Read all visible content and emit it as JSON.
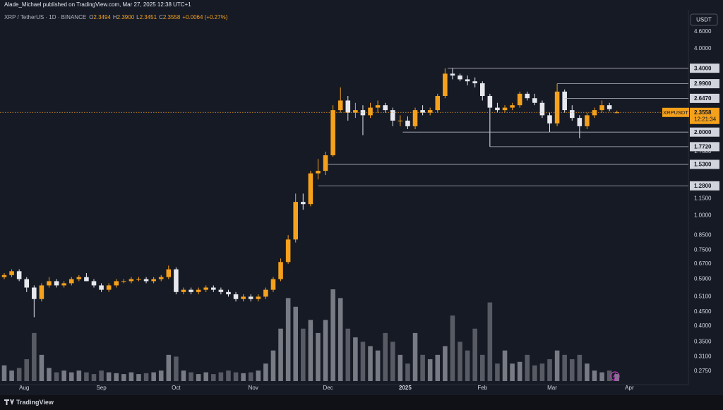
{
  "page": {
    "published": "Alade_Michael published on TradingView.com, Mar 27, 2025 12:38 UTC+1",
    "currency": "USDT",
    "brand": "TradingView"
  },
  "chart_data": {
    "type": "candlestick",
    "symbol": "XRP / TetherUS · 1D · BINANCE",
    "legend_ohlc": [
      {
        "key": "O",
        "value": "2.3494"
      },
      {
        "key": "H",
        "value": "2.3900"
      },
      {
        "key": "L",
        "value": "2.3451"
      },
      {
        "key": "C",
        "value": "2.3558"
      }
    ],
    "change": "+0.0064 (+0.27%)",
    "log_scale": true,
    "grid": false,
    "up_color": "#f5a11c",
    "down_color": "#e6e8ee",
    "volume_color": "#9a9ca4",
    "xlim": [
      -1.7,
      274.7
    ],
    "xticks": [
      {
        "value": 8,
        "label": "Aug"
      },
      {
        "value": 39,
        "label": "Sep"
      },
      {
        "value": 69,
        "label": "Oct"
      },
      {
        "value": 100,
        "label": "Nov"
      },
      {
        "value": 130,
        "label": "Dec"
      },
      {
        "value": 161,
        "label": "2025"
      },
      {
        "value": 192,
        "label": "Feb"
      },
      {
        "value": 220,
        "label": "Mar"
      },
      {
        "value": 251,
        "label": "Apr"
      }
    ],
    "ylim": [
      0.253,
      4.88
    ],
    "yticks": [
      {
        "value": 4.6,
        "label": "4.6000"
      },
      {
        "value": 4.0,
        "label": "4.0000"
      },
      {
        "value": 1.7,
        "label": "1.7000"
      },
      {
        "value": 1.15,
        "label": "1.1500"
      },
      {
        "value": 1.0,
        "label": "1.0000"
      },
      {
        "value": 0.85,
        "label": "0.8500"
      },
      {
        "value": 0.75,
        "label": "0.7500"
      },
      {
        "value": 0.67,
        "label": "0.6700"
      },
      {
        "value": 0.59,
        "label": "0.5900"
      },
      {
        "value": 0.51,
        "label": "0.5100"
      },
      {
        "value": 0.45,
        "label": "0.4500"
      },
      {
        "value": 0.4,
        "label": "0.4000"
      },
      {
        "value": 0.35,
        "label": "0.3500"
      },
      {
        "value": 0.31,
        "label": "0.3100"
      },
      {
        "value": 0.275,
        "label": "0.2750"
      }
    ],
    "levels": [
      {
        "value": 3.4,
        "label": "3.4000"
      },
      {
        "value": 2.99,
        "label": "2.9900"
      },
      {
        "value": 2.647,
        "label": "2.6470"
      },
      {
        "value": 2.0,
        "label": "2.0000"
      },
      {
        "value": 1.772,
        "label": "1.7720"
      },
      {
        "value": 1.53,
        "label": "1.5300"
      },
      {
        "value": 1.28,
        "label": "1.2800"
      }
    ],
    "last_price": {
      "value": 2.3558,
      "label": "2.3558",
      "symbol": "XRPUSDT",
      "countdown": "12:21:34"
    },
    "x": [
      0,
      3,
      6,
      9,
      12,
      15,
      18,
      21,
      24,
      27,
      30,
      33,
      36,
      39,
      42,
      45,
      48,
      51,
      54,
      57,
      60,
      63,
      66,
      69,
      72,
      75,
      78,
      81,
      84,
      87,
      90,
      93,
      96,
      99,
      102,
      105,
      108,
      111,
      114,
      117,
      120,
      123,
      126,
      129,
      132,
      135,
      138,
      141,
      144,
      147,
      150,
      153,
      156,
      159,
      162,
      165,
      168,
      171,
      174,
      177,
      180,
      183,
      186,
      189,
      192,
      195,
      198,
      201,
      204,
      207,
      210,
      213,
      216,
      219,
      222,
      225,
      228,
      231,
      234,
      237,
      240,
      243,
      246
    ],
    "open": [
      0.6,
      0.61,
      0.63,
      0.59,
      0.55,
      0.5,
      0.56,
      0.58,
      0.56,
      0.57,
      0.59,
      0.6,
      0.58,
      0.56,
      0.54,
      0.56,
      0.58,
      0.58,
      0.59,
      0.59,
      0.58,
      0.59,
      0.6,
      0.64,
      0.53,
      0.54,
      0.53,
      0.54,
      0.55,
      0.54,
      0.53,
      0.52,
      0.5,
      0.51,
      0.5,
      0.51,
      0.54,
      0.59,
      0.68,
      0.82,
      1.12,
      1.1,
      1.42,
      1.45,
      1.65,
      2.4,
      2.6,
      2.35,
      2.4,
      2.3,
      2.45,
      2.5,
      2.4,
      2.2,
      2.2,
      2.1,
      2.4,
      2.35,
      2.4,
      2.7,
      3.25,
      3.2,
      3.1,
      3.05,
      3.0,
      2.7,
      2.45,
      2.4,
      2.45,
      2.5,
      2.75,
      2.65,
      2.55,
      2.3,
      2.15,
      2.8,
      2.4,
      2.25,
      2.1,
      2.3,
      2.4,
      2.5,
      2.3494
    ],
    "high": [
      0.62,
      0.64,
      0.64,
      0.6,
      0.56,
      0.57,
      0.6,
      0.59,
      0.58,
      0.6,
      0.61,
      0.62,
      0.59,
      0.57,
      0.57,
      0.59,
      0.59,
      0.6,
      0.6,
      0.6,
      0.6,
      0.61,
      0.66,
      0.65,
      0.55,
      0.55,
      0.55,
      0.56,
      0.56,
      0.55,
      0.54,
      0.53,
      0.52,
      0.52,
      0.52,
      0.55,
      0.6,
      0.7,
      0.85,
      1.2,
      1.2,
      1.45,
      1.6,
      1.7,
      2.5,
      2.9,
      2.7,
      2.55,
      2.5,
      2.55,
      2.6,
      2.55,
      2.45,
      2.3,
      2.28,
      2.45,
      2.5,
      2.45,
      2.75,
      3.4,
      3.4,
      3.25,
      3.2,
      3.15,
      3.05,
      2.75,
      2.55,
      2.5,
      2.55,
      2.8,
      2.8,
      2.75,
      2.6,
      2.35,
      2.99,
      2.85,
      2.5,
      2.3,
      2.35,
      2.45,
      2.6,
      2.55,
      2.39
    ],
    "low": [
      0.59,
      0.6,
      0.58,
      0.53,
      0.43,
      0.49,
      0.55,
      0.55,
      0.55,
      0.56,
      0.58,
      0.58,
      0.55,
      0.53,
      0.53,
      0.55,
      0.57,
      0.57,
      0.58,
      0.57,
      0.57,
      0.58,
      0.59,
      0.52,
      0.52,
      0.52,
      0.52,
      0.53,
      0.53,
      0.52,
      0.51,
      0.49,
      0.49,
      0.49,
      0.49,
      0.5,
      0.53,
      0.58,
      0.67,
      0.8,
      1.05,
      1.08,
      1.35,
      1.4,
      1.63,
      2.35,
      2.2,
      2.25,
      1.95,
      2.25,
      2.35,
      2.35,
      2.1,
      2.1,
      2.05,
      2.05,
      2.3,
      2.3,
      2.35,
      2.65,
      3.1,
      3.05,
      2.95,
      2.9,
      2.6,
      1.772,
      2.35,
      2.35,
      2.4,
      2.45,
      2.6,
      2.5,
      2.25,
      2.0,
      2.1,
      2.35,
      2.2,
      1.9,
      2.05,
      2.25,
      2.35,
      2.38,
      2.3451
    ],
    "close": [
      0.61,
      0.63,
      0.59,
      0.55,
      0.5,
      0.56,
      0.58,
      0.56,
      0.57,
      0.59,
      0.6,
      0.58,
      0.56,
      0.54,
      0.56,
      0.58,
      0.58,
      0.59,
      0.59,
      0.58,
      0.59,
      0.6,
      0.64,
      0.53,
      0.54,
      0.53,
      0.54,
      0.55,
      0.54,
      0.53,
      0.52,
      0.5,
      0.51,
      0.5,
      0.51,
      0.54,
      0.59,
      0.68,
      0.82,
      1.12,
      1.1,
      1.42,
      1.45,
      1.65,
      2.4,
      2.6,
      2.35,
      2.4,
      2.3,
      2.45,
      2.5,
      2.4,
      2.2,
      2.2,
      2.1,
      2.4,
      2.35,
      2.4,
      2.7,
      3.25,
      3.2,
      3.1,
      3.05,
      3.0,
      2.7,
      2.45,
      2.4,
      2.45,
      2.5,
      2.75,
      2.65,
      2.55,
      2.3,
      2.15,
      2.8,
      2.4,
      2.25,
      2.1,
      2.3,
      2.4,
      2.5,
      2.42,
      2.3558
    ],
    "volume": [
      18,
      12,
      15,
      25,
      55,
      30,
      15,
      10,
      12,
      10,
      12,
      10,
      8,
      12,
      10,
      9,
      8,
      10,
      8,
      9,
      10,
      12,
      30,
      28,
      12,
      10,
      8,
      10,
      8,
      10,
      12,
      10,
      9,
      10,
      12,
      20,
      35,
      60,
      95,
      85,
      60,
      70,
      55,
      70,
      105,
      95,
      60,
      50,
      45,
      40,
      35,
      55,
      45,
      30,
      20,
      55,
      30,
      25,
      30,
      40,
      75,
      45,
      35,
      60,
      30,
      90,
      20,
      35,
      20,
      22,
      30,
      18,
      20,
      25,
      35,
      30,
      25,
      30,
      20,
      12,
      10,
      12,
      8
    ]
  }
}
